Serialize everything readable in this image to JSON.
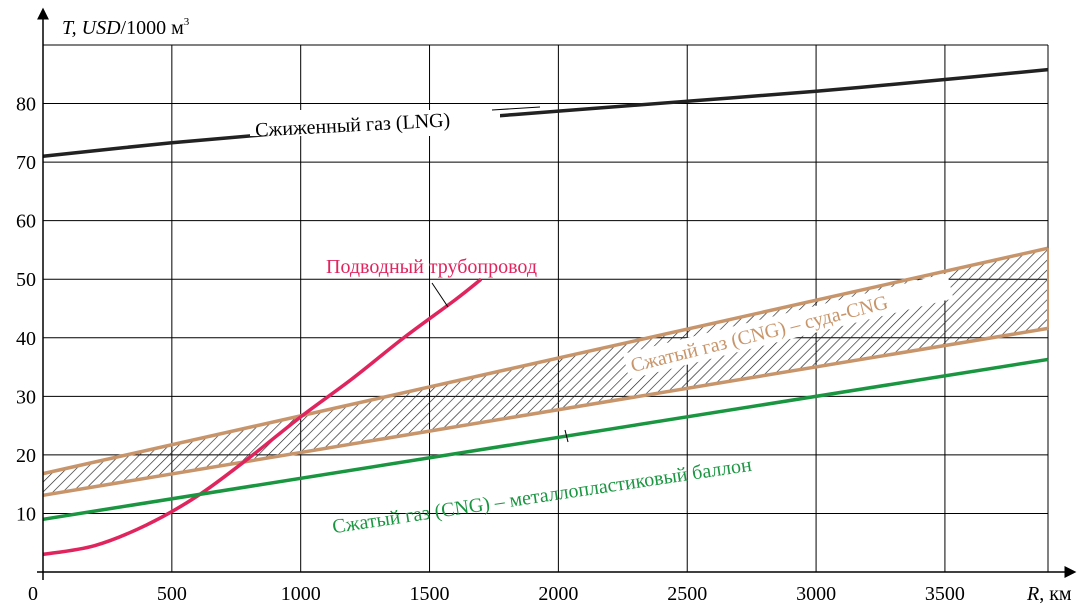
{
  "chart_data": {
    "type": "line",
    "ylabel": {
      "prefix": "T, ",
      "italic_part": "USD",
      "suffix": "/1000 м",
      "superscript": "3"
    },
    "xlabel": {
      "italic_part": "R",
      "suffix": ", км"
    },
    "origin_label": "0",
    "xlim": [
      0,
      3900
    ],
    "ylim": [
      0,
      90
    ],
    "x_ticks": [
      "500",
      "1000",
      "1500",
      "2000",
      "2500",
      "3000",
      "3500"
    ],
    "y_ticks": [
      "10",
      "20",
      "30",
      "40",
      "50",
      "60",
      "70",
      "80"
    ],
    "grid": true,
    "series": [
      {
        "name": "Сжиженный газ (LNG)",
        "color": "#222222",
        "x": [
          0,
          500,
          1000,
          1500,
          2000,
          2500,
          3000,
          3500,
          3900
        ],
        "y": [
          71,
          73.3,
          75.2,
          77.0,
          78.7,
          80.4,
          82.1,
          84.1,
          85.8
        ]
      },
      {
        "name": "Подводный трубопровод",
        "color": "#e0245e",
        "x": [
          0,
          200,
          400,
          600,
          800,
          1000,
          1200,
          1400,
          1600,
          1700
        ],
        "y": [
          3,
          4.5,
          8,
          13,
          19.5,
          26.5,
          33,
          40,
          46.5,
          50
        ]
      },
      {
        "name": "Сжатый газ (CNG) – металлопластиковый баллон",
        "color": "#1a9641",
        "x": [
          0,
          3900
        ],
        "y": [
          9,
          36.3
        ]
      }
    ],
    "band": {
      "name": "Сжатый газ (CNG) – суда-CNG",
      "color": "#c8956a",
      "upper": {
        "x": [
          0,
          3900
        ],
        "y": [
          16.8,
          55.3
        ]
      },
      "lower": {
        "x": [
          0,
          3900
        ],
        "y": [
          13.1,
          41.6
        ]
      }
    }
  }
}
